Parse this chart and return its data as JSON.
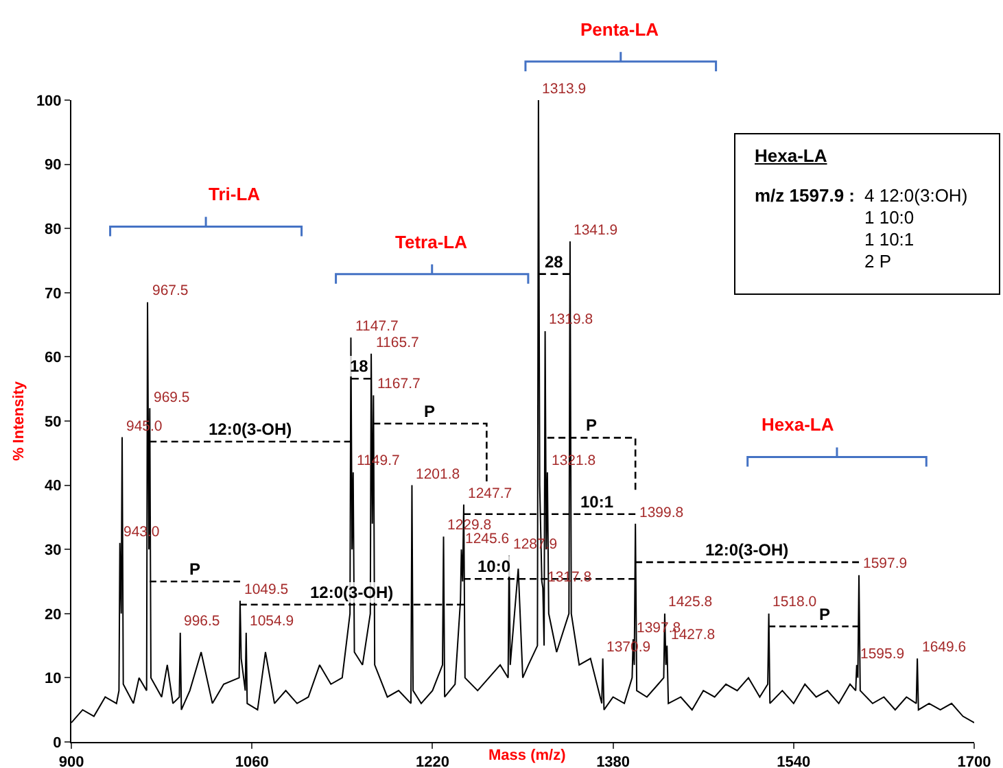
{
  "chart_data": {
    "type": "line",
    "xlabel": "Mass (m/z)",
    "ylabel": "% Intensity",
    "xlim": [
      900,
      1700
    ],
    "xticks": [
      900,
      1060,
      1220,
      1380,
      1540,
      1700
    ],
    "ylim": [
      0,
      100
    ],
    "yticks": [
      0,
      10,
      20,
      30,
      40,
      50,
      60,
      70,
      80,
      90,
      100
    ],
    "annotations": [
      "Tri-LA",
      "Tetra-LA",
      "Penta-LA",
      "Hexa-LA",
      {
        "text": "943.0",
        "x": 943.0,
        "y": 31
      },
      {
        "text": "945.0",
        "x": 945.0,
        "y": 47.5
      },
      {
        "text": "967.5",
        "x": 967.5,
        "y": 68.5
      },
      {
        "text": "969.5",
        "x": 969.5,
        "y": 52
      },
      {
        "text": "996.5",
        "x": 996.5,
        "y": 17
      },
      {
        "text": "1049.5",
        "x": 1049.5,
        "y": 22
      },
      {
        "text": "1054.9",
        "x": 1054.9,
        "y": 17
      },
      {
        "text": "1147.7",
        "x": 1147.7,
        "y": 63
      },
      {
        "text": "1149.7",
        "x": 1149.7,
        "y": 42
      },
      {
        "text": "1165.7",
        "x": 1165.7,
        "y": 60.5
      },
      {
        "text": "1167.7",
        "x": 1167.7,
        "y": 54
      },
      {
        "text": "1201.8",
        "x": 1201.8,
        "y": 40
      },
      {
        "text": "1229.8",
        "x": 1229.8,
        "y": 32
      },
      {
        "text": "1245.6",
        "x": 1245.6,
        "y": 30
      },
      {
        "text": "1247.7",
        "x": 1247.7,
        "y": 37
      },
      {
        "text": "1287.9",
        "x": 1287.9,
        "y": 29
      },
      {
        "text": "1313.9",
        "x": 1313.9,
        "y": 100
      },
      {
        "text": "1317.8",
        "x": 1317.8,
        "y": 24
      },
      {
        "text": "1319.8",
        "x": 1319.8,
        "y": 64
      },
      {
        "text": "1321.8",
        "x": 1321.8,
        "y": 42
      },
      {
        "text": "1341.9",
        "x": 1341.9,
        "y": 78
      },
      {
        "text": "1370.9",
        "x": 1370.9,
        "y": 13
      },
      {
        "text": "1397.8",
        "x": 1397.8,
        "y": 16
      },
      {
        "text": "1399.8",
        "x": 1399.8,
        "y": 34
      },
      {
        "text": "1425.8",
        "x": 1425.8,
        "y": 20
      },
      {
        "text": "1427.8",
        "x": 1427.8,
        "y": 15
      },
      {
        "text": "1518.0",
        "x": 1518.0,
        "y": 20
      },
      {
        "text": "1595.9",
        "x": 1595.9,
        "y": 12
      },
      {
        "text": "1597.9",
        "x": 1597.9,
        "y": 26
      },
      {
        "text": "1649.6",
        "x": 1649.6,
        "y": 13
      },
      "Hexa-LA",
      "m/z 1597.9 :",
      "4 12:0(3:OH)",
      "1 10:0",
      "1 10:1",
      "2 P"
    ],
    "series": [
      {
        "color": "#000000",
        "line_style": "solid",
        "x": [
          900,
          910,
          920,
          930,
          940,
          942.2,
          943.0,
          944.2,
          945.0,
          946,
          955,
          960,
          966.7,
          967.5,
          968.7,
          969.5,
          970.5,
          980,
          985,
          990,
          995.7,
          996.5,
          997.5,
          1005,
          1015,
          1025,
          1035,
          1048.7,
          1049.5,
          1050.5,
          1054.1,
          1054.9,
          1055.8,
          1065,
          1072,
          1080,
          1090,
          1100,
          1110,
          1120,
          1130,
          1140,
          1146.9,
          1147.7,
          1148.7,
          1149.7,
          1150.8,
          1158,
          1164.9,
          1165.7,
          1166.7,
          1167.7,
          1168.8,
          1180,
          1190,
          1200.9,
          1201.8,
          1202.8,
          1210,
          1220,
          1228.9,
          1229.8,
          1230.8,
          1240,
          1244.8,
          1245.6,
          1246.7,
          1247.7,
          1248.8,
          1260,
          1270,
          1280,
          1287.0,
          1287.9,
          1288.9,
          1296,
          1300,
          1305,
          1313.0,
          1313.9,
          1315,
          1316.9,
          1317.8,
          1318.9,
          1319.8,
          1320.8,
          1321.8,
          1323,
          1330,
          1340.9,
          1341.9,
          1343,
          1350,
          1360,
          1370.0,
          1370.9,
          1372,
          1380,
          1390,
          1396.9,
          1397.8,
          1398.8,
          1399.8,
          1401,
          1410,
          1420,
          1424.9,
          1425.8,
          1426.8,
          1427.8,
          1429,
          1440,
          1450,
          1460,
          1470,
          1480,
          1490,
          1500,
          1510,
          1517.1,
          1518.0,
          1519,
          1530,
          1540,
          1550,
          1560,
          1570,
          1580,
          1590,
          1595.0,
          1595.9,
          1596.9,
          1597.9,
          1599,
          1610,
          1620,
          1630,
          1640,
          1648.7,
          1649.6,
          1650.6,
          1660,
          1670,
          1680,
          1690,
          1700
        ],
        "values": [
          3,
          5,
          4,
          7,
          6,
          8,
          31,
          20,
          47.5,
          9,
          6,
          10,
          8,
          68.5,
          30,
          52,
          10,
          7,
          12,
          6,
          7,
          17,
          5,
          8,
          14,
          6,
          9,
          10,
          22,
          13,
          8,
          17,
          6,
          5,
          14,
          6,
          8,
          6,
          7,
          12,
          9,
          10,
          20,
          63,
          30,
          42,
          14,
          12,
          20,
          60.5,
          34,
          54,
          12,
          7,
          8,
          6,
          40,
          8,
          6,
          8,
          12,
          32,
          7,
          9,
          22,
          30,
          25,
          37,
          10,
          8,
          10,
          12,
          10,
          29,
          12,
          27,
          10,
          12,
          15,
          100,
          40,
          25,
          24,
          15,
          64,
          30,
          42,
          20,
          14,
          20,
          78,
          20,
          12,
          13,
          6,
          13,
          5,
          7,
          6,
          10,
          16,
          12,
          34,
          8,
          7,
          9,
          10,
          20,
          12,
          15,
          6,
          7,
          5,
          8,
          7,
          9,
          8,
          10,
          7,
          9,
          20,
          6,
          8,
          6,
          9,
          7,
          8,
          6,
          9,
          8,
          12,
          10,
          26,
          8,
          6,
          7,
          5,
          7,
          6,
          13,
          5,
          6,
          5,
          6,
          4,
          3
        ]
      },
      {
        "name": "12:0(3-OH)",
        "color": "#000000",
        "line_style": "dashed",
        "x": [
          969.5,
          1147.7
        ],
        "values": [
          46.8,
          46.8
        ]
      },
      {
        "name": "P",
        "color": "#000000",
        "line_style": "dashed",
        "x": [
          969.5,
          1049.5
        ],
        "values": [
          25,
          25
        ]
      },
      {
        "name": "12:0(3-OH)",
        "color": "#000000",
        "line_style": "dashed",
        "x": [
          1049.5,
          1247.7
        ],
        "values": [
          21.4,
          21.4
        ]
      },
      {
        "name": "18",
        "color": "#000000",
        "line_style": "dashed",
        "x": [
          1147.7,
          1165.7
        ],
        "values": [
          56.6,
          56.6
        ]
      },
      {
        "name": "P",
        "color": "#000000",
        "line_style": "dashed",
        "x": [
          1167.7,
          1268,
          1268
        ],
        "values": [
          49.6,
          49.6,
          40.6
        ]
      },
      {
        "name": "10:1",
        "color": "#000000",
        "line_style": "dashed",
        "x": [
          1247.7,
          1399.8
        ],
        "values": [
          35.5,
          35.5
        ]
      },
      {
        "name": "P",
        "color": "#000000",
        "line_style": "dashed",
        "x": [
          1321.8,
          1399.8,
          1399.8
        ],
        "values": [
          47.4,
          47.4,
          39.3
        ]
      },
      {
        "name": "28",
        "color": "#000000",
        "line_style": "dashed",
        "x": [
          1313.9,
          1341.9
        ],
        "values": [
          72.9,
          72.9
        ]
      },
      {
        "name": "10:0",
        "color": "#000000",
        "line_style": "dashed",
        "x": [
          1247.7,
          1399.8
        ],
        "values": [
          25.4,
          25.4
        ]
      },
      {
        "name": "12:0(3-OH)",
        "color": "#000000",
        "line_style": "dashed",
        "x": [
          1399.8,
          1597.9
        ],
        "values": [
          28,
          28
        ]
      },
      {
        "name": "P",
        "color": "#000000",
        "line_style": "dashed",
        "x": [
          1518.0,
          1597.9
        ],
        "values": [
          18,
          18
        ]
      }
    ]
  }
}
